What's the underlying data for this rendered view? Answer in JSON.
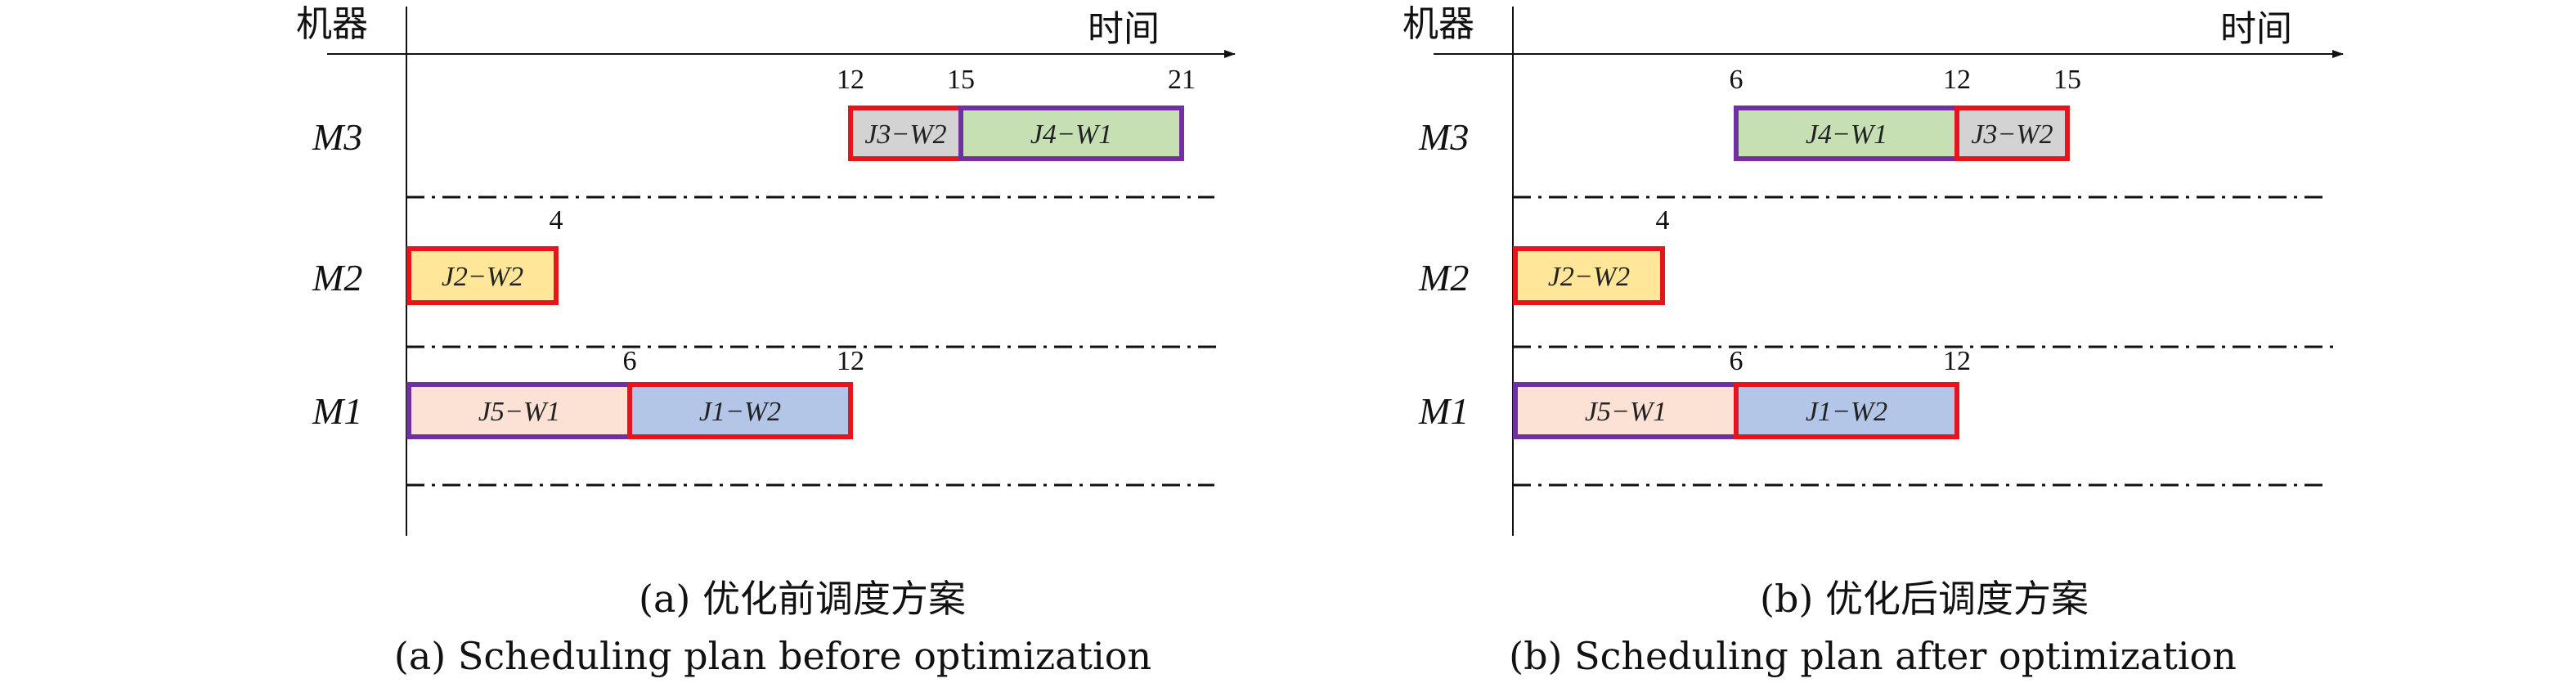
{
  "panels": [
    {
      "id": "a",
      "y_label": "机器",
      "x_label": "时间",
      "machines": [
        "M3",
        "M2",
        "M1"
      ],
      "caption_cn": "(a) 优化前调度方案",
      "caption_en": "(a) Scheduling plan before optimization",
      "tasks": [
        {
          "machine": "M3",
          "start": 12,
          "end": 15,
          "label": "J3−W2",
          "fill": "#d3d3d3",
          "border": "#e8141d"
        },
        {
          "machine": "M3",
          "start": 15,
          "end": 21,
          "label": "J4−W1",
          "fill": "#c6e0b4",
          "border": "#7030a0"
        },
        {
          "machine": "M2",
          "start": 0,
          "end": 4,
          "label": "J2−W2",
          "fill": "#ffe699",
          "border": "#e8141d"
        },
        {
          "machine": "M1",
          "start": 0,
          "end": 6,
          "label": "J5−W1",
          "fill": "#fbe2d5",
          "border": "#7030a0"
        },
        {
          "machine": "M1",
          "start": 6,
          "end": 12,
          "label": "J1−W2",
          "fill": "#b4c6e7",
          "border": "#e8141d"
        }
      ],
      "ticks": [
        {
          "machine": "M3",
          "values": [
            "12",
            "15",
            "21"
          ]
        },
        {
          "machine": "M2",
          "values": [
            "4"
          ]
        },
        {
          "machine": "M1",
          "values": [
            "6",
            "12"
          ]
        }
      ]
    },
    {
      "id": "b",
      "y_label": "机器",
      "x_label": "时间",
      "machines": [
        "M3",
        "M2",
        "M1"
      ],
      "caption_cn": "(b) 优化后调度方案",
      "caption_en": "(b) Scheduling plan after optimization",
      "tasks": [
        {
          "machine": "M3",
          "start": 6,
          "end": 12,
          "label": "J4−W1",
          "fill": "#c6e0b4",
          "border": "#7030a0"
        },
        {
          "machine": "M3",
          "start": 12,
          "end": 15,
          "label": "J3−W2",
          "fill": "#d3d3d3",
          "border": "#e8141d"
        },
        {
          "machine": "M2",
          "start": 0,
          "end": 4,
          "label": "J2−W2",
          "fill": "#ffe699",
          "border": "#e8141d"
        },
        {
          "machine": "M1",
          "start": 0,
          "end": 6,
          "label": "J5−W1",
          "fill": "#fbe2d5",
          "border": "#7030a0"
        },
        {
          "machine": "M1",
          "start": 6,
          "end": 12,
          "label": "J1−W2",
          "fill": "#b4c6e7",
          "border": "#e8141d"
        }
      ],
      "ticks": [
        {
          "machine": "M3",
          "values": [
            "6",
            "12",
            "15"
          ]
        },
        {
          "machine": "M2",
          "values": [
            "4"
          ]
        },
        {
          "machine": "M1",
          "values": [
            "6",
            "12"
          ]
        }
      ]
    }
  ]
}
